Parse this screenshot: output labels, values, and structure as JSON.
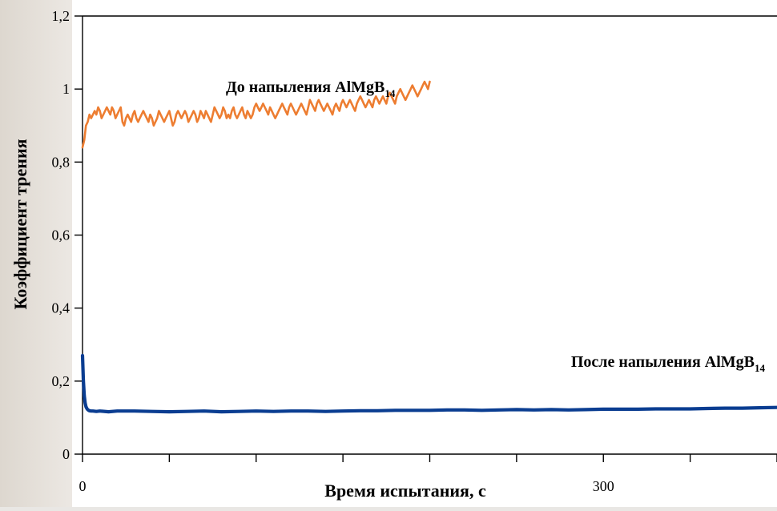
{
  "chart_data": {
    "type": "line",
    "xlabel": "Время испытания, с",
    "ylabel": "Коэффициент трения",
    "xlim": [
      0,
      400
    ],
    "ylim": [
      0,
      1.2
    ],
    "x_ticks": [
      0,
      300
    ],
    "y_ticks": [
      "0",
      "0,2",
      "0,4",
      "0,6",
      "0,8",
      "1",
      "1,2"
    ],
    "grid": false,
    "series": [
      {
        "label_base": "До напыления AlMgB",
        "label_sub": "14",
        "color": "#ed7d31",
        "x": [
          0,
          1,
          2,
          3,
          4,
          5,
          6,
          7,
          8,
          9,
          10,
          11,
          12,
          13,
          14,
          15,
          16,
          17,
          18,
          19,
          20,
          21,
          22,
          23,
          24,
          25,
          26,
          27,
          28,
          29,
          30,
          31,
          32,
          33,
          34,
          35,
          36,
          37,
          38,
          39,
          40,
          41,
          42,
          43,
          44,
          45,
          46,
          47,
          48,
          49,
          50,
          51,
          52,
          53,
          54,
          55,
          56,
          57,
          58,
          59,
          60,
          61,
          62,
          63,
          64,
          65,
          66,
          67,
          68,
          69,
          70,
          71,
          72,
          73,
          74,
          75,
          76,
          77,
          78,
          79,
          80,
          81,
          82,
          83,
          84,
          85,
          86,
          87,
          88,
          89,
          90,
          91,
          92,
          93,
          94,
          95,
          96,
          97,
          98,
          99,
          100,
          101,
          102,
          103,
          104,
          105,
          106,
          107,
          108,
          109,
          110,
          111,
          112,
          113,
          114,
          115,
          116,
          117,
          118,
          119,
          120,
          121,
          122,
          123,
          124,
          125,
          126,
          127,
          128,
          129,
          130,
          131,
          132,
          133,
          134,
          135,
          136,
          137,
          138,
          139,
          140,
          141,
          142,
          143,
          144,
          145,
          146,
          147,
          148,
          149,
          150,
          151,
          152,
          153,
          154,
          155,
          156,
          157,
          158,
          159,
          160,
          161,
          162,
          163,
          164,
          165,
          166,
          167,
          168,
          169,
          170,
          171,
          172,
          173,
          174,
          175,
          176,
          177,
          178,
          179,
          180,
          181,
          182,
          183,
          184,
          185,
          186,
          187,
          188,
          189,
          190,
          191,
          192,
          193,
          194,
          195,
          196,
          197,
          198,
          199,
          200
        ],
        "y": [
          0.84,
          0.86,
          0.9,
          0.91,
          0.93,
          0.92,
          0.93,
          0.94,
          0.93,
          0.95,
          0.94,
          0.92,
          0.93,
          0.94,
          0.95,
          0.94,
          0.93,
          0.95,
          0.94,
          0.92,
          0.93,
          0.94,
          0.95,
          0.91,
          0.9,
          0.92,
          0.93,
          0.92,
          0.91,
          0.93,
          0.94,
          0.92,
          0.91,
          0.92,
          0.93,
          0.94,
          0.93,
          0.92,
          0.91,
          0.93,
          0.92,
          0.9,
          0.91,
          0.92,
          0.94,
          0.93,
          0.92,
          0.91,
          0.92,
          0.93,
          0.94,
          0.92,
          0.9,
          0.91,
          0.93,
          0.94,
          0.93,
          0.92,
          0.93,
          0.94,
          0.93,
          0.91,
          0.92,
          0.93,
          0.94,
          0.93,
          0.91,
          0.92,
          0.94,
          0.93,
          0.92,
          0.94,
          0.93,
          0.92,
          0.91,
          0.93,
          0.95,
          0.94,
          0.93,
          0.92,
          0.93,
          0.95,
          0.94,
          0.92,
          0.93,
          0.92,
          0.94,
          0.95,
          0.93,
          0.92,
          0.93,
          0.94,
          0.95,
          0.93,
          0.92,
          0.94,
          0.93,
          0.92,
          0.93,
          0.95,
          0.96,
          0.95,
          0.94,
          0.95,
          0.96,
          0.95,
          0.94,
          0.93,
          0.95,
          0.94,
          0.93,
          0.92,
          0.93,
          0.94,
          0.95,
          0.96,
          0.95,
          0.94,
          0.93,
          0.95,
          0.96,
          0.95,
          0.94,
          0.93,
          0.94,
          0.95,
          0.96,
          0.95,
          0.94,
          0.93,
          0.95,
          0.97,
          0.96,
          0.95,
          0.94,
          0.96,
          0.97,
          0.96,
          0.95,
          0.94,
          0.95,
          0.96,
          0.95,
          0.94,
          0.93,
          0.95,
          0.96,
          0.95,
          0.94,
          0.96,
          0.97,
          0.96,
          0.95,
          0.96,
          0.97,
          0.96,
          0.95,
          0.94,
          0.96,
          0.97,
          0.98,
          0.97,
          0.96,
          0.95,
          0.96,
          0.97,
          0.96,
          0.95,
          0.97,
          0.98,
          0.97,
          0.96,
          0.97,
          0.98,
          0.97,
          0.96,
          0.98,
          0.99,
          0.98,
          0.97,
          0.96,
          0.98,
          0.99,
          1.0,
          0.99,
          0.98,
          0.97,
          0.98,
          0.99,
          1.0,
          1.01,
          1.0,
          0.99,
          0.98,
          0.99,
          1.0,
          1.01,
          1.02,
          1.01,
          1.0,
          1.02
        ]
      },
      {
        "label_base": "После напыления AlMgB",
        "label_sub": "14",
        "color": "#0a3d91",
        "x": [
          0,
          0.5,
          1,
          1.5,
          2,
          2.5,
          3,
          3.5,
          4,
          5,
          6,
          8,
          10,
          15,
          20,
          30,
          40,
          50,
          60,
          70,
          80,
          90,
          100,
          110,
          120,
          130,
          140,
          150,
          160,
          170,
          180,
          190,
          200,
          210,
          220,
          230,
          240,
          250,
          260,
          270,
          280,
          290,
          300,
          310,
          320,
          330,
          340,
          350,
          360,
          370,
          380,
          390,
          400
        ],
        "y": [
          0.27,
          0.2,
          0.16,
          0.14,
          0.13,
          0.125,
          0.122,
          0.12,
          0.119,
          0.118,
          0.118,
          0.117,
          0.118,
          0.116,
          0.118,
          0.118,
          0.117,
          0.116,
          0.117,
          0.118,
          0.116,
          0.117,
          0.118,
          0.117,
          0.118,
          0.118,
          0.117,
          0.118,
          0.119,
          0.119,
          0.12,
          0.12,
          0.12,
          0.121,
          0.121,
          0.12,
          0.121,
          0.122,
          0.121,
          0.122,
          0.121,
          0.122,
          0.123,
          0.123,
          0.123,
          0.124,
          0.124,
          0.124,
          0.125,
          0.126,
          0.126,
          0.127,
          0.128
        ]
      }
    ]
  }
}
